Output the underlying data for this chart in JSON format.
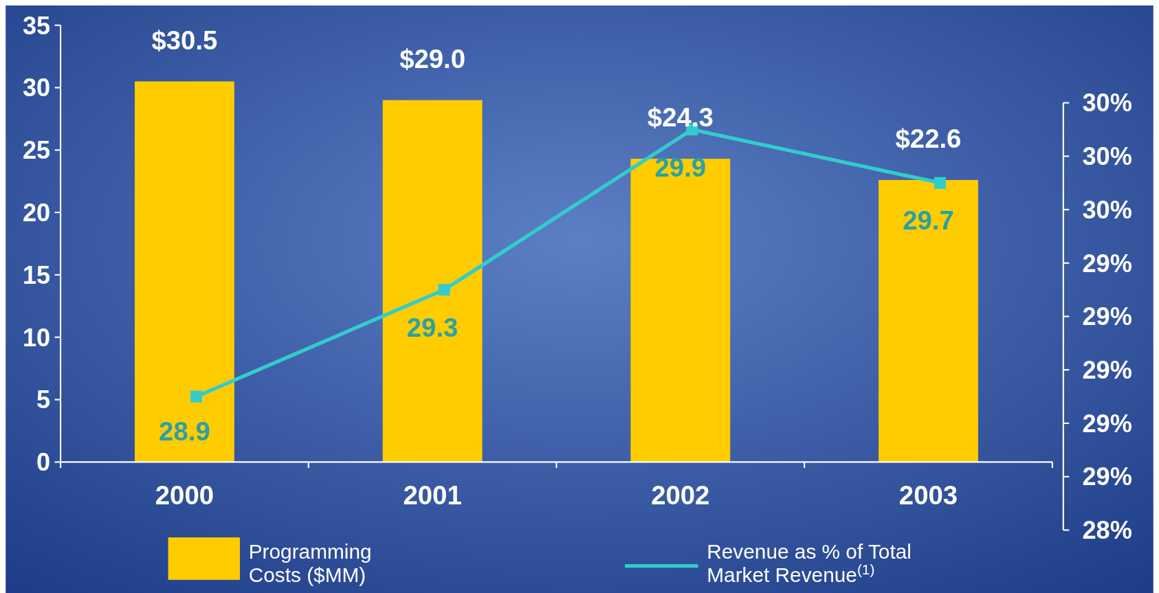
{
  "chart_data": {
    "type": "bar",
    "categories": [
      "2000",
      "2001",
      "2002",
      "2003"
    ],
    "series": [
      {
        "name": "Programming Costs ($MM)",
        "color": "#ffcc00",
        "values": [
          30.5,
          29.0,
          24.3,
          22.6
        ],
        "value_labels": [
          "$30.5",
          "$29.0",
          "$24.3",
          "$22.6"
        ]
      },
      {
        "name": "Revenue as % of Total Market Revenue$^{(1)}$",
        "type": "line",
        "axis": "y2",
        "color": "#33cccc",
        "values": [
          28.9,
          29.3,
          29.9,
          29.7
        ],
        "value_labels": [
          "28.9",
          "29.3",
          "29.9",
          "29.7"
        ],
        "marker": "square"
      }
    ],
    "ylim": [
      0,
      35
    ],
    "yticks": [
      0,
      5,
      10,
      15,
      20,
      25,
      30,
      35
    ],
    "y2lim": [
      28.4,
      30.0
    ],
    "y2ticks": [
      {
        "value": 28.4,
        "label": "28%"
      },
      {
        "value": 28.6,
        "label": "29%"
      },
      {
        "value": 28.8,
        "label": "29%"
      },
      {
        "value": 29.0,
        "label": "29%"
      },
      {
        "value": 29.2,
        "label": "29%"
      },
      {
        "value": 29.4,
        "label": "29%"
      },
      {
        "value": 29.6,
        "label": "30%"
      },
      {
        "value": 29.8,
        "label": "30%"
      },
      {
        "value": 30.0,
        "label": "30%"
      }
    ],
    "legend": "bottom",
    "grid": false
  }
}
